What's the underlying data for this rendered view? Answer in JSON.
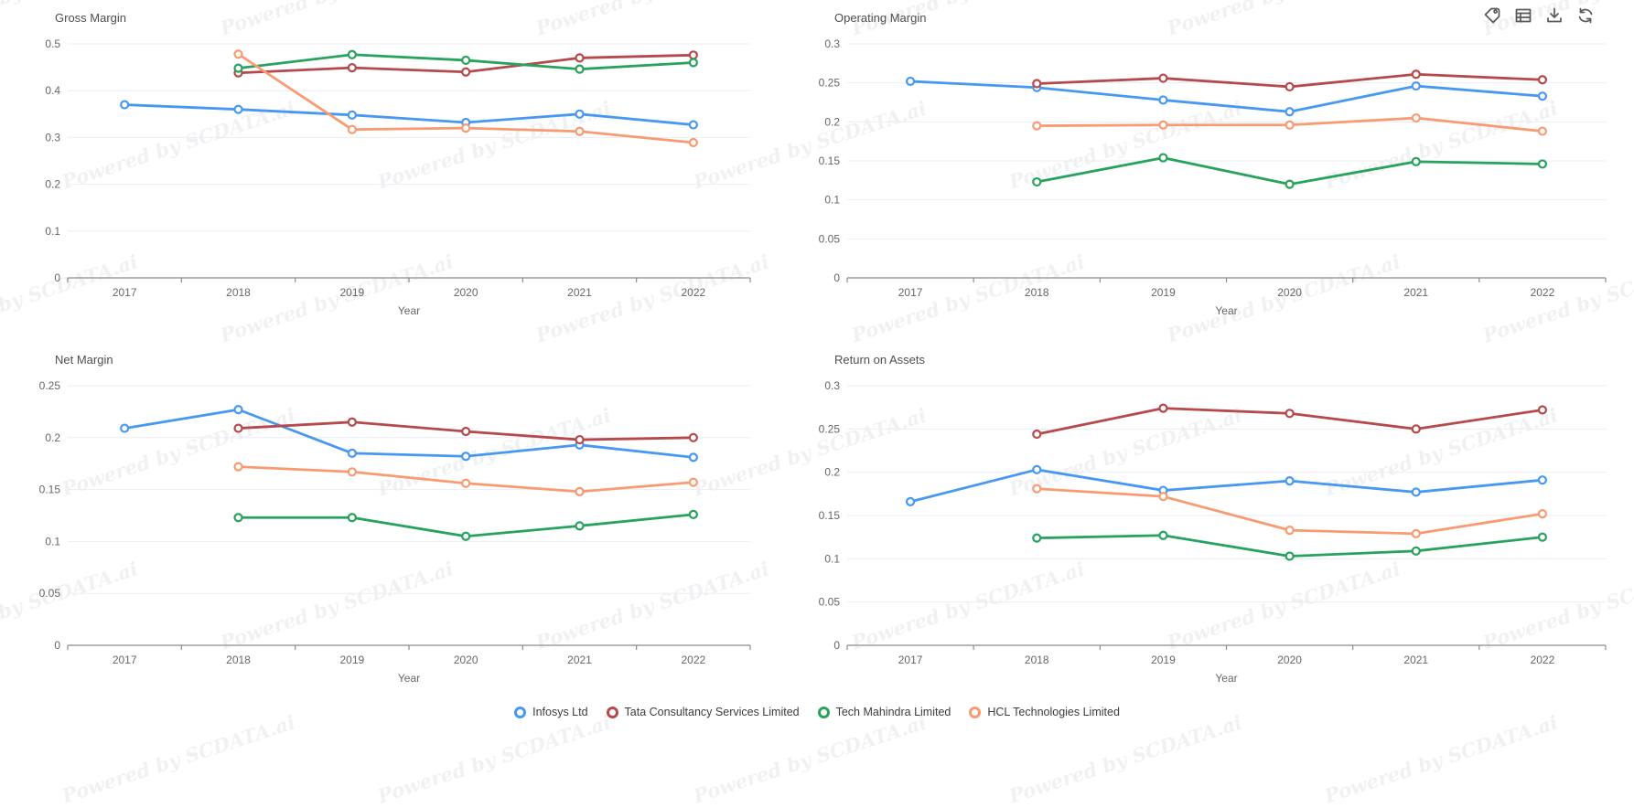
{
  "watermark": {
    "text": "Powered by SCDATA.ai"
  },
  "toolbar": {
    "icons": [
      {
        "name": "tag-icon"
      },
      {
        "name": "table-icon"
      },
      {
        "name": "download-icon"
      },
      {
        "name": "refresh-icon"
      }
    ]
  },
  "colors": {
    "blue": "#4698F2",
    "red": "#B5494C",
    "green": "#27A35D",
    "orange": "#F89B72",
    "gridline": "#E9EEF5",
    "axis": "#8C8C8C",
    "tick_text": "#666666",
    "title_text": "#4E4E4E"
  },
  "legend": {
    "items": [
      {
        "label": "Infosys Ltd",
        "color": "#4698F2"
      },
      {
        "label": "Tata Consultancy Services Limited",
        "color": "#B5494C"
      },
      {
        "label": "Tech Mahindra Limited",
        "color": "#27A35D"
      },
      {
        "label": "HCL Technologies Limited",
        "color": "#F89B72"
      }
    ]
  },
  "chart_data": [
    {
      "type": "line",
      "title": "Gross Margin",
      "xlabel": "Year",
      "categories": [
        "2017",
        "2018",
        "2019",
        "2020",
        "2021",
        "2022"
      ],
      "yticks": [
        0,
        0.1,
        0.2,
        0.3,
        0.4,
        0.5
      ],
      "ylim": [
        0,
        0.5
      ],
      "grid": true,
      "legend_position": "bottom-shared",
      "series": [
        {
          "name": "Infosys Ltd",
          "values": [
            0.37,
            0.36,
            0.348,
            0.332,
            0.35,
            0.327
          ]
        },
        {
          "name": "Tata Consultancy Services Limited",
          "values": [
            null,
            0.438,
            0.449,
            0.44,
            0.47,
            0.476
          ]
        },
        {
          "name": "Tech Mahindra Limited",
          "values": [
            null,
            0.448,
            0.477,
            0.465,
            0.446,
            0.46
          ]
        },
        {
          "name": "HCL Technologies Limited",
          "values": [
            null,
            0.478,
            0.317,
            0.32,
            0.313,
            0.289
          ]
        }
      ]
    },
    {
      "type": "line",
      "title": "Operating Margin",
      "xlabel": "Year",
      "categories": [
        "2017",
        "2018",
        "2019",
        "2020",
        "2021",
        "2022"
      ],
      "yticks": [
        0,
        0.05,
        0.1,
        0.15,
        0.2,
        0.25,
        0.3
      ],
      "ylim": [
        0,
        0.3
      ],
      "grid": true,
      "legend_position": "bottom-shared",
      "series": [
        {
          "name": "Infosys Ltd",
          "values": [
            0.252,
            0.244,
            0.228,
            0.213,
            0.246,
            0.233
          ]
        },
        {
          "name": "Tata Consultancy Services Limited",
          "values": [
            null,
            0.249,
            0.256,
            0.245,
            0.261,
            0.254
          ]
        },
        {
          "name": "Tech Mahindra Limited",
          "values": [
            null,
            0.123,
            0.154,
            0.12,
            0.149,
            0.146
          ]
        },
        {
          "name": "HCL Technologies Limited",
          "values": [
            null,
            0.195,
            0.196,
            0.196,
            0.205,
            0.188
          ]
        }
      ]
    },
    {
      "type": "line",
      "title": "Net Margin",
      "xlabel": "Year",
      "categories": [
        "2017",
        "2018",
        "2019",
        "2020",
        "2021",
        "2022"
      ],
      "yticks": [
        0,
        0.05,
        0.1,
        0.15,
        0.2,
        0.25
      ],
      "ylim": [
        0,
        0.25
      ],
      "grid": true,
      "legend_position": "bottom-shared",
      "series": [
        {
          "name": "Infosys Ltd",
          "values": [
            0.209,
            0.227,
            0.185,
            0.182,
            0.193,
            0.181
          ]
        },
        {
          "name": "Tata Consultancy Services Limited",
          "values": [
            null,
            0.209,
            0.215,
            0.206,
            0.198,
            0.2
          ]
        },
        {
          "name": "Tech Mahindra Limited",
          "values": [
            null,
            0.123,
            0.123,
            0.105,
            0.115,
            0.126
          ]
        },
        {
          "name": "HCL Technologies Limited",
          "values": [
            null,
            0.172,
            0.167,
            0.156,
            0.148,
            0.157
          ]
        }
      ]
    },
    {
      "type": "line",
      "title": "Return on Assets",
      "xlabel": "Year",
      "categories": [
        "2017",
        "2018",
        "2019",
        "2020",
        "2021",
        "2022"
      ],
      "yticks": [
        0,
        0.05,
        0.1,
        0.15,
        0.2,
        0.25,
        0.3
      ],
      "ylim": [
        0,
        0.3
      ],
      "grid": true,
      "legend_position": "bottom-shared",
      "series": [
        {
          "name": "Infosys Ltd",
          "values": [
            0.166,
            0.203,
            0.179,
            0.19,
            0.177,
            0.191
          ]
        },
        {
          "name": "Tata Consultancy Services Limited",
          "values": [
            null,
            0.244,
            0.274,
            0.268,
            0.25,
            0.272
          ]
        },
        {
          "name": "Tech Mahindra Limited",
          "values": [
            null,
            0.124,
            0.127,
            0.103,
            0.109,
            0.125
          ]
        },
        {
          "name": "HCL Technologies Limited",
          "values": [
            null,
            0.181,
            0.172,
            0.133,
            0.129,
            0.152
          ]
        }
      ]
    }
  ]
}
